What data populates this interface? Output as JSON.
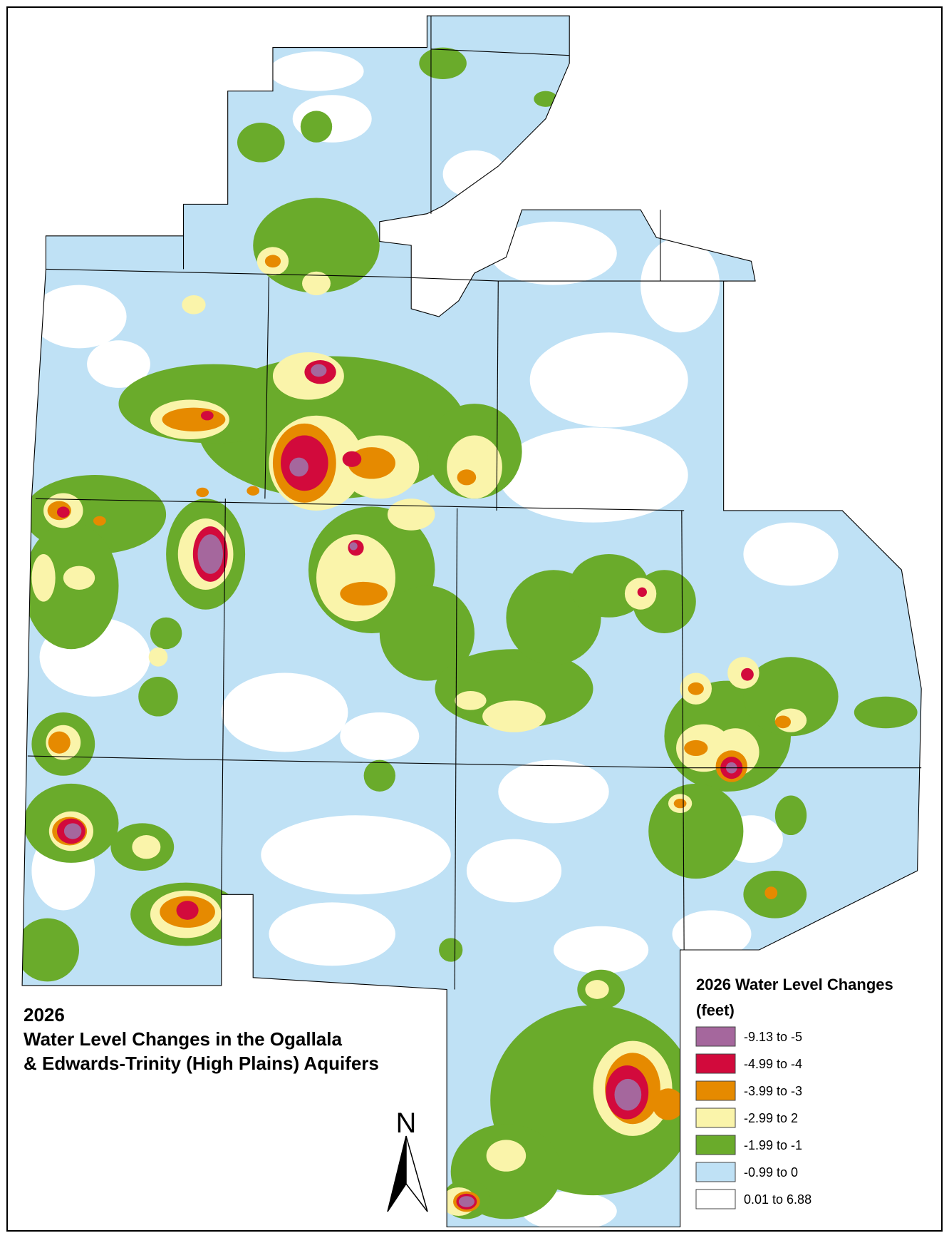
{
  "map": {
    "title": [
      "2026",
      "Water Level Changes in the Ogallala",
      "& Edwards-Trinity (High Plains) Aquifers"
    ],
    "legend": {
      "title": "2026 Water Level Changes",
      "unit": "(feet)",
      "items": [
        {
          "label": "-9.13 to -5",
          "color": "#a5679d"
        },
        {
          "label": "-4.99 to -4",
          "color": "#d20a3c"
        },
        {
          "label": "-3.99 to -3",
          "color": "#e68a00"
        },
        {
          "label": "-2.99 to 2",
          "color": "#faf4aa"
        },
        {
          "label": "-1.99 to -1",
          "color": "#6aab2b"
        },
        {
          "label": "-0.99 to 0",
          "color": "#bfe1f5"
        },
        {
          "label": "0.01 to 6.88",
          "color": "#ffffff"
        }
      ]
    },
    "north_label": "N"
  }
}
